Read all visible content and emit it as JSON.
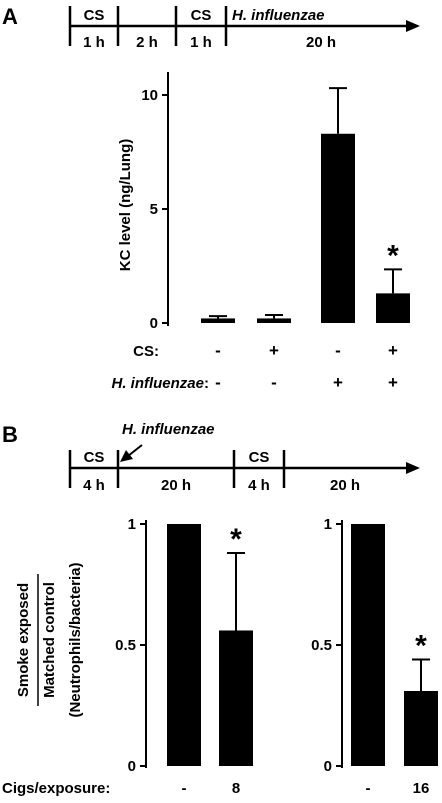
{
  "panel_a": {
    "label": "A",
    "timeline": {
      "events": [
        "CS",
        "CS",
        "H. influenzae"
      ],
      "durations": [
        "1 h",
        "2 h",
        "1 h",
        "20 h"
      ]
    },
    "row_labels": [
      "CS:",
      "H. influenzae:"
    ],
    "significance_mark": "*"
  },
  "panel_b": {
    "label": "B",
    "timeline": {
      "events": [
        "CS",
        "H. influenzae",
        "CS"
      ],
      "durations": [
        "4 h",
        "20 h",
        "4 h",
        "20 h"
      ]
    },
    "ylabel_fraction_top": "Smoke exposed",
    "ylabel_fraction_bottom": "Matched control",
    "row_label": "Cigs/exposure:",
    "significance_mark": "*"
  },
  "chart_data": [
    {
      "type": "bar",
      "panel": "A",
      "ylabel": "KC level (ng/Lung)",
      "ylim": [
        0,
        11
      ],
      "yticks": [
        "0",
        "5",
        "10"
      ],
      "row_labels": [
        "CS:",
        "H. influenzae:"
      ],
      "conditions": {
        "CS": [
          "-",
          "+",
          "-",
          "+"
        ],
        "H. influenzae": [
          "-",
          "-",
          "+",
          "+"
        ]
      },
      "values": [
        0.2,
        0.2,
        8.3,
        1.3
      ],
      "errors": [
        0.1,
        0.15,
        2.0,
        1.05
      ],
      "significance": [
        "",
        "",
        "",
        "*"
      ],
      "color": "#000000"
    },
    {
      "type": "bar",
      "panel": "B-left",
      "ylabel": "(Neutrophils/bacteria)",
      "ylim": [
        0,
        1
      ],
      "yticks": [
        "0",
        "0.5",
        "1"
      ],
      "categories": [
        "-",
        "8"
      ],
      "values": [
        1.0,
        0.56
      ],
      "errors": [
        0,
        0.32
      ],
      "significance": [
        "",
        "*"
      ],
      "color": "#000000"
    },
    {
      "type": "bar",
      "panel": "B-right",
      "ylim": [
        0,
        1
      ],
      "yticks": [
        "0",
        "0.5",
        "1"
      ],
      "categories": [
        "-",
        "16"
      ],
      "values": [
        1.0,
        0.31
      ],
      "errors": [
        0,
        0.13
      ],
      "significance": [
        "",
        "*"
      ],
      "color": "#000000"
    }
  ]
}
